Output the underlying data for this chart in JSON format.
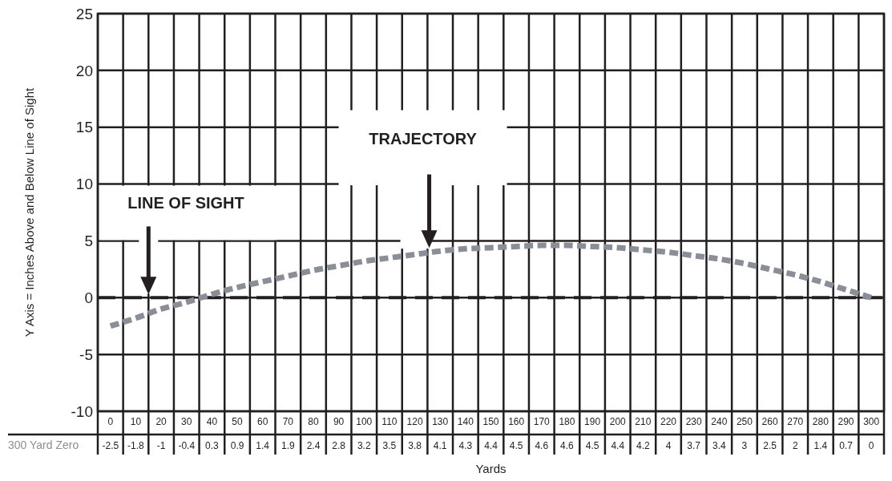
{
  "chart_data": {
    "type": "line",
    "ylabel": "Y Axis = Inches Above and Below Line of Sight",
    "xlabel": "Yards",
    "categories": [
      "0",
      "10",
      "20",
      "30",
      "40",
      "50",
      "60",
      "70",
      "80",
      "90",
      "100",
      "110",
      "120",
      "130",
      "140",
      "150",
      "160",
      "170",
      "180",
      "190",
      "200",
      "210",
      "220",
      "230",
      "240",
      "250",
      "260",
      "270",
      "280",
      "290",
      "300"
    ],
    "series": [
      {
        "name": "300 Yard Zero",
        "color": "#8a8f97",
        "values": [
          -2.5,
          -1.8,
          -1,
          -0.4,
          0.3,
          0.9,
          1.4,
          1.9,
          2.4,
          2.8,
          3.2,
          3.5,
          3.8,
          4.1,
          4.3,
          4.4,
          4.5,
          4.6,
          4.6,
          4.5,
          4.4,
          4.2,
          4,
          3.7,
          3.4,
          3,
          2.5,
          2,
          1.4,
          0.7,
          0
        ]
      }
    ],
    "line_style": "dashed",
    "data_labels": true,
    "grid": true,
    "ylim": [
      -10,
      25
    ],
    "yticks": [
      -10,
      -5,
      0,
      5,
      10,
      15,
      20,
      25
    ],
    "ref_lines": [
      {
        "axis": "y",
        "value": 0,
        "label": "LINE OF SIGHT",
        "color": "#231f20",
        "line_style": "dashed"
      }
    ],
    "annotations": [
      "TRAJECTORY"
    ]
  }
}
